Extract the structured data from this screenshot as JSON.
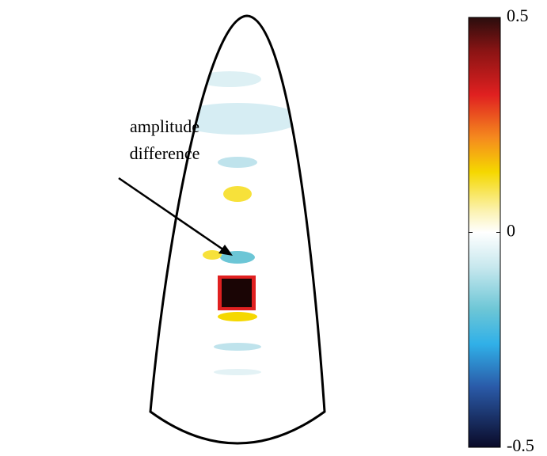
{
  "chart_data": {
    "type": "colormap",
    "annotation_lines": [
      "amplitude",
      "difference"
    ],
    "clim": [
      -0.5,
      0.5
    ],
    "cticks": [
      0.5,
      0,
      -0.5
    ]
  }
}
